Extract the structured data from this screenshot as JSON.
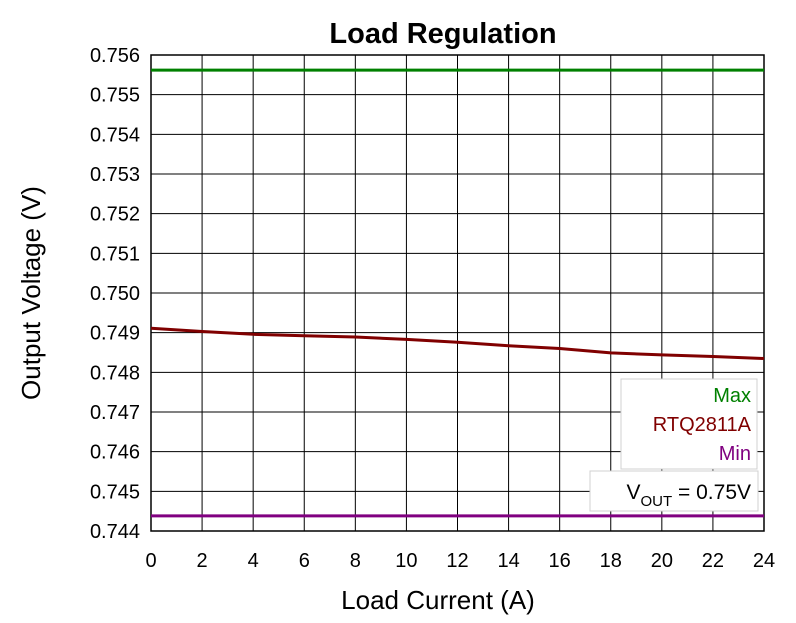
{
  "chart_data": {
    "type": "line",
    "title": "Load Regulation",
    "xlabel": "Load Current (A)",
    "ylabel": "Output Voltage (V)",
    "xlim": [
      0,
      24
    ],
    "ylim": [
      0.744,
      0.756
    ],
    "x_ticks": [
      "0",
      "2",
      "4",
      "6",
      "8",
      "10",
      "12",
      "14",
      "16",
      "18",
      "20",
      "22",
      "24"
    ],
    "y_ticks": [
      "0.744",
      "0.745",
      "0.746",
      "0.747",
      "0.748",
      "0.749",
      "0.750",
      "0.751",
      "0.752",
      "0.753",
      "0.754",
      "0.755",
      "0.756"
    ],
    "grid": true,
    "legend_position": "bottom-right",
    "series": [
      {
        "name": "Max",
        "color": "#008000",
        "x": [
          0,
          24
        ],
        "y": [
          0.75562,
          0.75562
        ]
      },
      {
        "name": "RTQ2811A",
        "color": "#800000",
        "x": [
          0,
          2,
          4,
          6,
          8,
          10,
          12,
          14,
          16,
          18,
          20,
          22,
          24
        ],
        "y": [
          0.74911,
          0.74903,
          0.74896,
          0.74892,
          0.74889,
          0.74883,
          0.74876,
          0.74867,
          0.7486,
          0.74849,
          0.74844,
          0.7484,
          0.74835
        ]
      },
      {
        "name": "Min",
        "color": "#800080",
        "x": [
          0,
          24
        ],
        "y": [
          0.74438,
          0.74438
        ]
      }
    ],
    "annotation": {
      "main": "V",
      "sub": "OUT",
      "rest": " = 0.75V"
    }
  }
}
